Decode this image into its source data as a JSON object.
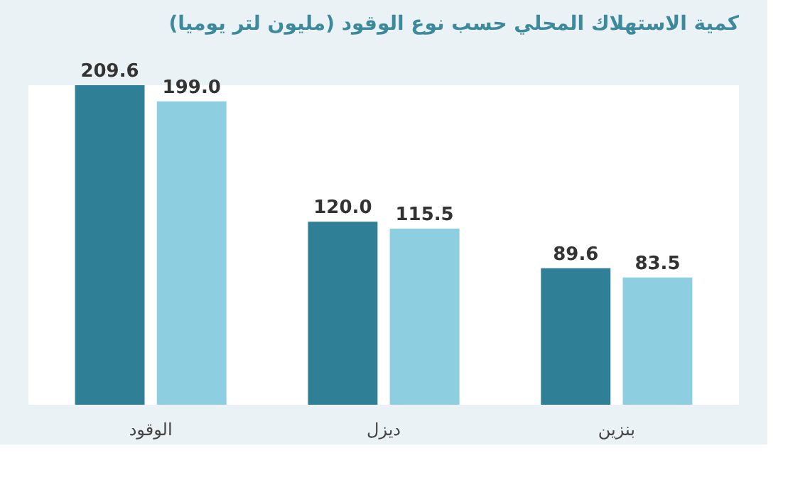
{
  "chart_data": {
    "type": "bar",
    "title": "كمية الاستهلاك المحلي حسب نوع الوقود (مليون لتر يوميا)",
    "categories": [
      "الوقود",
      "ديزل",
      "بنزين"
    ],
    "series": [
      {
        "color": "#2f7f96",
        "values": [
          209.6,
          120.0,
          89.6
        ],
        "value_labels": [
          "209.6",
          "120.0",
          "89.6"
        ]
      },
      {
        "color": "#8dcfe0",
        "values": [
          199.0,
          115.5,
          83.5
        ],
        "value_labels": [
          "199.0",
          "115.5",
          "83.5"
        ]
      }
    ],
    "grid": false
  }
}
